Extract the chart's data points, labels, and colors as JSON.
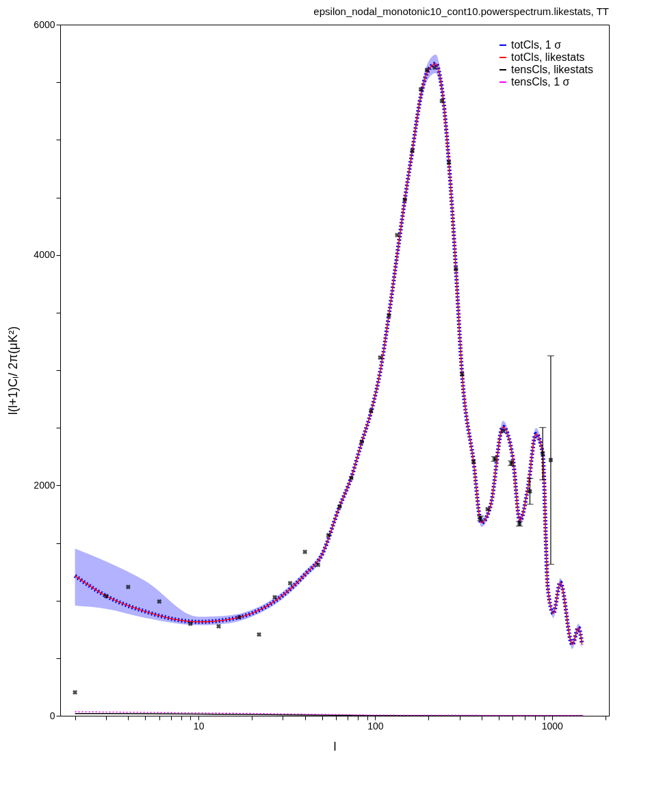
{
  "chart_data": {
    "type": "line",
    "title": "epsilon_nodal_monotonic10_cont10.powerspectrum.likestats, TT",
    "xlabel": "l",
    "ylabel": "l(l+1)Cₗ/ 2π(μK²)",
    "log": "x",
    "xlim": [
      1.65,
      2100
    ],
    "ylim": [
      0,
      6000
    ],
    "xticks": [
      {
        "value": 2,
        "label": null
      },
      {
        "value": 3,
        "label": null
      },
      {
        "value": 4,
        "label": null
      },
      {
        "value": 5,
        "label": null
      },
      {
        "value": 6,
        "label": null
      },
      {
        "value": 7,
        "label": null
      },
      {
        "value": 8,
        "label": null
      },
      {
        "value": 9,
        "label": null
      },
      10,
      {
        "value": 20,
        "label": null
      },
      {
        "value": 30,
        "label": null
      },
      {
        "value": 40,
        "label": null
      },
      {
        "value": 50,
        "label": null
      },
      {
        "value": 60,
        "label": null
      },
      {
        "value": 70,
        "label": null
      },
      {
        "value": 80,
        "label": null
      },
      {
        "value": 90,
        "label": null
      },
      100,
      {
        "value": 200,
        "label": null
      },
      {
        "value": 300,
        "label": null
      },
      {
        "value": 400,
        "label": null
      },
      {
        "value": 500,
        "label": null
      },
      {
        "value": 600,
        "label": null
      },
      {
        "value": 700,
        "label": null
      },
      {
        "value": 800,
        "label": null
      },
      {
        "value": 900,
        "label": null
      },
      1000,
      {
        "value": 2000,
        "label": null
      }
    ],
    "yticks": [
      0,
      {
        "value": 500,
        "label": null
      },
      {
        "value": 1000,
        "label": null
      },
      {
        "value": 1500,
        "label": null
      },
      2000,
      {
        "value": 2500,
        "label": null
      },
      {
        "value": 3000,
        "label": null
      },
      {
        "value": 3500,
        "label": null
      },
      4000,
      {
        "value": 4500,
        "label": null
      },
      {
        "value": 5000,
        "label": null
      },
      {
        "value": 5500,
        "label": null
      },
      6000
    ],
    "legend": "top right",
    "series": [
      {
        "name": "totCls, 1 σ",
        "color": "#0000ff",
        "line_style": "dotted",
        "x": [
          2,
          3,
          5,
          10,
          15,
          20,
          30,
          40,
          50,
          62.8,
          73,
          84,
          95,
          107,
          120,
          133,
          147,
          162,
          181,
          196,
          220,
          238,
          261,
          286,
          310,
          360,
          398,
          450,
          528,
          600,
          658,
          730,
          811,
          886,
          946,
          1019,
          1114,
          1303,
          1413,
          1480
        ],
        "values": [
          1215,
          1040,
          905,
          815,
          838,
          889,
          1046,
          1226,
          1400,
          1817,
          2064,
          2379,
          2646,
          3000,
          3500,
          4000,
          4480,
          4904,
          5380,
          5580,
          5660,
          5450,
          4803,
          3878,
          2964,
          2205,
          1676,
          1828,
          2508,
          2240,
          1693,
          1974,
          2447,
          2276,
          1114,
          889,
          1159,
          619,
          765,
          619
        ],
        "lower": [
          956,
          928,
          849,
          787,
          804,
          860,
          1016,
          1196,
          1370,
          1787,
          2034,
          2349,
          2616,
          2970,
          3460,
          3950,
          4430,
          4850,
          5320,
          5510,
          5580,
          5380,
          4750,
          3840,
          2930,
          2175,
          1640,
          1798,
          2460,
          2210,
          1650,
          1944,
          2400,
          2246,
          1080,
          850,
          1120,
          580,
          725,
          580
        ],
        "upper": [
          1451,
          1339,
          1170,
          860,
          872,
          919,
          1076,
          1256,
          1430,
          1847,
          2094,
          2409,
          2676,
          3030,
          3540,
          4050,
          4530,
          4960,
          5440,
          5650,
          5740,
          5520,
          4860,
          3916,
          2994,
          2235,
          1710,
          1858,
          2560,
          2270,
          1730,
          2004,
          2500,
          2306,
          1150,
          925,
          1195,
          655,
          800,
          655
        ]
      },
      {
        "name": "totCls, likestats",
        "color": "#ff0000",
        "line_style": "solid",
        "x": [
          2,
          3,
          5,
          10,
          15,
          20,
          30,
          40,
          50,
          62.8,
          73,
          84,
          95,
          107,
          120,
          133,
          147,
          162,
          181,
          196,
          220,
          238,
          261,
          286,
          310,
          360,
          398,
          450,
          528,
          600,
          658,
          730,
          811,
          886,
          946,
          1019,
          1114,
          1303,
          1413,
          1480
        ],
        "values": [
          1215,
          1040,
          905,
          815,
          838,
          889,
          1046,
          1226,
          1400,
          1817,
          2064,
          2379,
          2646,
          3000,
          3500,
          4000,
          4480,
          4904,
          5380,
          5580,
          5660,
          5450,
          4803,
          3878,
          2964,
          2205,
          1676,
          1828,
          2508,
          2240,
          1693,
          1974,
          2447,
          2276,
          1114,
          889,
          1159,
          619,
          765,
          619
        ]
      },
      {
        "name": "tensCls, likestats",
        "color": "#000000",
        "line_style": "solid",
        "x": [
          2,
          5,
          10,
          20,
          50,
          100,
          300,
          1500
        ],
        "values": [
          20,
          18,
          15,
          12,
          6,
          2,
          0,
          0
        ]
      },
      {
        "name": "tensCls, 1 σ",
        "color": "#ff00ff",
        "line_style": "dotted",
        "x": [
          2,
          5,
          10,
          20,
          50,
          100,
          300,
          1500
        ],
        "values": [
          35,
          30,
          25,
          20,
          12,
          6,
          4,
          3
        ]
      },
      {
        "type": "scatter",
        "color": "#000000",
        "marker": "cross",
        "x": [
          2,
          3,
          4,
          6,
          9,
          13,
          17,
          22,
          27,
          33,
          40,
          47.5,
          54.3,
          62.8,
          73.1,
          83.8,
          94.7,
          106.6,
          119.5,
          133,
          147,
          162,
          181,
          196,
          217,
          238,
          261,
          286,
          310,
          360,
          394,
          432,
          473,
          529,
          588,
          654,
          750,
          886,
          984
        ],
        "values": [
          204,
          1039,
          1119,
          992,
          799,
          776,
          855,
          705,
          1029,
          1151,
          1423,
          1310,
          1569,
          1817,
          2064,
          2379,
          2646,
          3110,
          3476,
          4173,
          4480,
          4904,
          5439,
          5607,
          5627,
          5337,
          4803,
          3878,
          2964,
          2205,
          1714,
          1794,
          2229,
          2473,
          2192,
          1667,
          1948,
          2276,
          2220
        ],
        "errors": [
          null,
          null,
          null,
          null,
          null,
          null,
          null,
          null,
          null,
          null,
          null,
          null,
          null,
          null,
          null,
          null,
          null,
          null,
          null,
          null,
          null,
          null,
          null,
          null,
          null,
          null,
          null,
          null,
          null,
          null,
          20,
          null,
          20,
          null,
          20,
          20,
          112,
          227,
          905
        ]
      }
    ]
  }
}
